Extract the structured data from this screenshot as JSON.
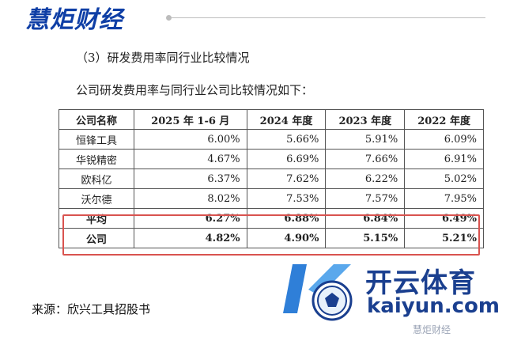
{
  "brand": {
    "name": "慧炬财经"
  },
  "section_heading": "（3）研发费用率同行业比较情况",
  "intro": "公司研发费用率与同行业公司比较情况如下：",
  "table": {
    "headers": [
      "公司名称",
      "2025 年 1-6 月",
      "2024 年度",
      "2023 年度",
      "2022 年度"
    ],
    "rows": [
      [
        "恒锋工具",
        "6.00%",
        "5.66%",
        "5.91%",
        "6.09%"
      ],
      [
        "华锐精密",
        "4.67%",
        "6.69%",
        "7.66%",
        "6.91%"
      ],
      [
        "欧科亿",
        "6.37%",
        "7.62%",
        "6.22%",
        "5.02%"
      ],
      [
        "沃尔德",
        "8.02%",
        "7.53%",
        "7.57%",
        "7.95%"
      ],
      [
        "平均",
        "6.27%",
        "6.88%",
        "6.84%",
        "6.49%"
      ],
      [
        "公司",
        "4.82%",
        "4.90%",
        "5.15%",
        "5.21%"
      ]
    ]
  },
  "source": "来源：欣兴工具招股书",
  "watermark": {
    "cn": "开云体育",
    "url": "kaiyun.com",
    "sub": "慧炬财经"
  },
  "colors": {
    "brand": "#0f3fa6",
    "highlight_border": "#d9534f",
    "watermark": "#1a3f8f"
  }
}
